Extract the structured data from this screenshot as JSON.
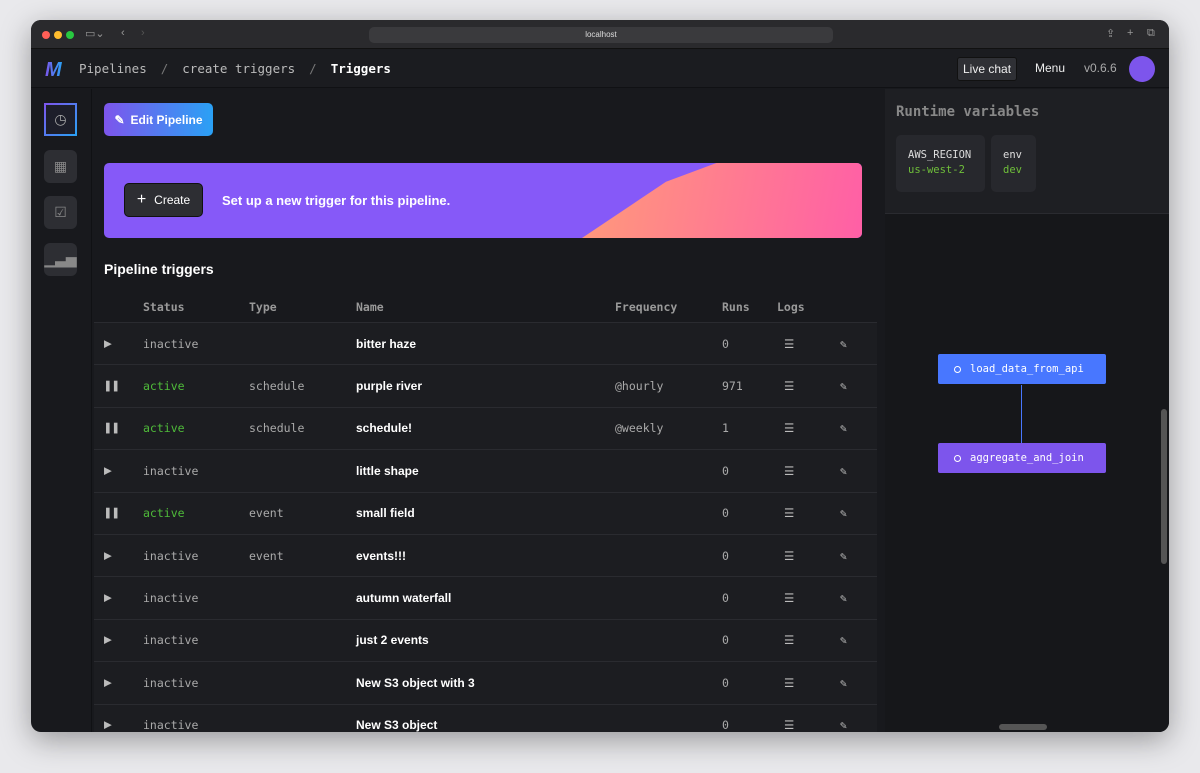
{
  "browser": {
    "url": "localhost"
  },
  "header": {
    "logo": "M",
    "breadcrumbs": [
      "Pipelines",
      "create triggers",
      "Triggers"
    ],
    "live_chat": "Live chat",
    "menu": "Menu",
    "version": "v0.6.6"
  },
  "sidebar": {
    "items": [
      {
        "icon": "clock-icon",
        "active": true
      },
      {
        "icon": "blocks-icon"
      },
      {
        "icon": "checklist-icon"
      },
      {
        "icon": "bar-chart-icon"
      }
    ]
  },
  "main": {
    "edit_pipeline": "Edit Pipeline",
    "create": "Create",
    "banner_text": "Set up a new trigger for this pipeline.",
    "section_title": "Pipeline triggers",
    "columns": [
      "Status",
      "Type",
      "Name",
      "Frequency",
      "Runs",
      "Logs"
    ],
    "rows": [
      {
        "status": "inactive",
        "type": "",
        "name": "bitter haze",
        "frequency": "",
        "runs": "0"
      },
      {
        "status": "active",
        "type": "schedule",
        "name": "purple river",
        "frequency": "@hourly",
        "runs": "971"
      },
      {
        "status": "active",
        "type": "schedule",
        "name": "schedule!",
        "frequency": "@weekly",
        "runs": "1"
      },
      {
        "status": "inactive",
        "type": "",
        "name": "little shape",
        "frequency": "",
        "runs": "0"
      },
      {
        "status": "active",
        "type": "event",
        "name": "small field",
        "frequency": "",
        "runs": "0"
      },
      {
        "status": "inactive",
        "type": "event",
        "name": "events!!!",
        "frequency": "",
        "runs": "0"
      },
      {
        "status": "inactive",
        "type": "",
        "name": "autumn waterfall",
        "frequency": "",
        "runs": "0"
      },
      {
        "status": "inactive",
        "type": "",
        "name": "just 2 events",
        "frequency": "",
        "runs": "0"
      },
      {
        "status": "inactive",
        "type": "",
        "name": "New S3 object with 3",
        "frequency": "",
        "runs": "0"
      },
      {
        "status": "inactive",
        "type": "",
        "name": "New S3 object",
        "frequency": "",
        "runs": "0"
      }
    ]
  },
  "right": {
    "title": "Runtime variables",
    "variables": [
      {
        "key": "AWS_REGION",
        "value": "us-west-2"
      },
      {
        "key": "env",
        "value": "dev"
      }
    ],
    "nodes": [
      {
        "name": "load_data_from_api",
        "color": "#4877ff"
      },
      {
        "name": "aggregate_and_join",
        "color": "#7d55ec"
      }
    ]
  },
  "colors": {
    "accent": "#7d55ec",
    "active": "#4fbb3a",
    "banner": "#8659f8"
  }
}
